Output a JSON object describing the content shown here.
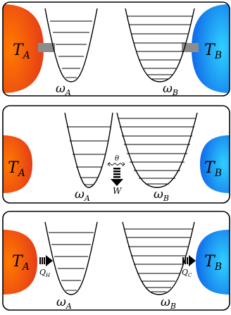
{
  "panels": [
    {
      "id": "coupled",
      "hot_reservoir": {
        "symbol": "T",
        "sub": "A",
        "color_inner": "#ff6a00",
        "color_outer": "#e03a10"
      },
      "cold_reservoir": {
        "symbol": "T",
        "sub": "B",
        "color_inner": "#2cc6ff",
        "color_outer": "#0a64e6"
      },
      "well_a": {
        "symbol": "ω",
        "sub": "A",
        "levels": 6
      },
      "well_b": {
        "symbol": "ω",
        "sub": "B",
        "levels": 9
      },
      "link_color": "#8c8c8c"
    },
    {
      "id": "work-exchange",
      "hot_reservoir": {
        "symbol": "T",
        "sub": "A"
      },
      "cold_reservoir": {
        "symbol": "T",
        "sub": "B"
      },
      "well_a": {
        "symbol": "ω",
        "sub": "A",
        "levels": 6
      },
      "well_b": {
        "symbol": "ω",
        "sub": "B",
        "levels": 9
      },
      "coupling": {
        "symbol": "θ"
      },
      "work": {
        "symbol": "W"
      }
    },
    {
      "id": "heat-flow",
      "hot_reservoir": {
        "symbol": "T",
        "sub": "A"
      },
      "cold_reservoir": {
        "symbol": "T",
        "sub": "B"
      },
      "well_a": {
        "symbol": "ω",
        "sub": "A",
        "levels": 6
      },
      "well_b": {
        "symbol": "ω",
        "sub": "B",
        "levels": 9
      },
      "heat_in": {
        "symbol": "Q",
        "sub": "H"
      },
      "heat_out": {
        "symbol": "Q",
        "sub": "C"
      }
    }
  ]
}
